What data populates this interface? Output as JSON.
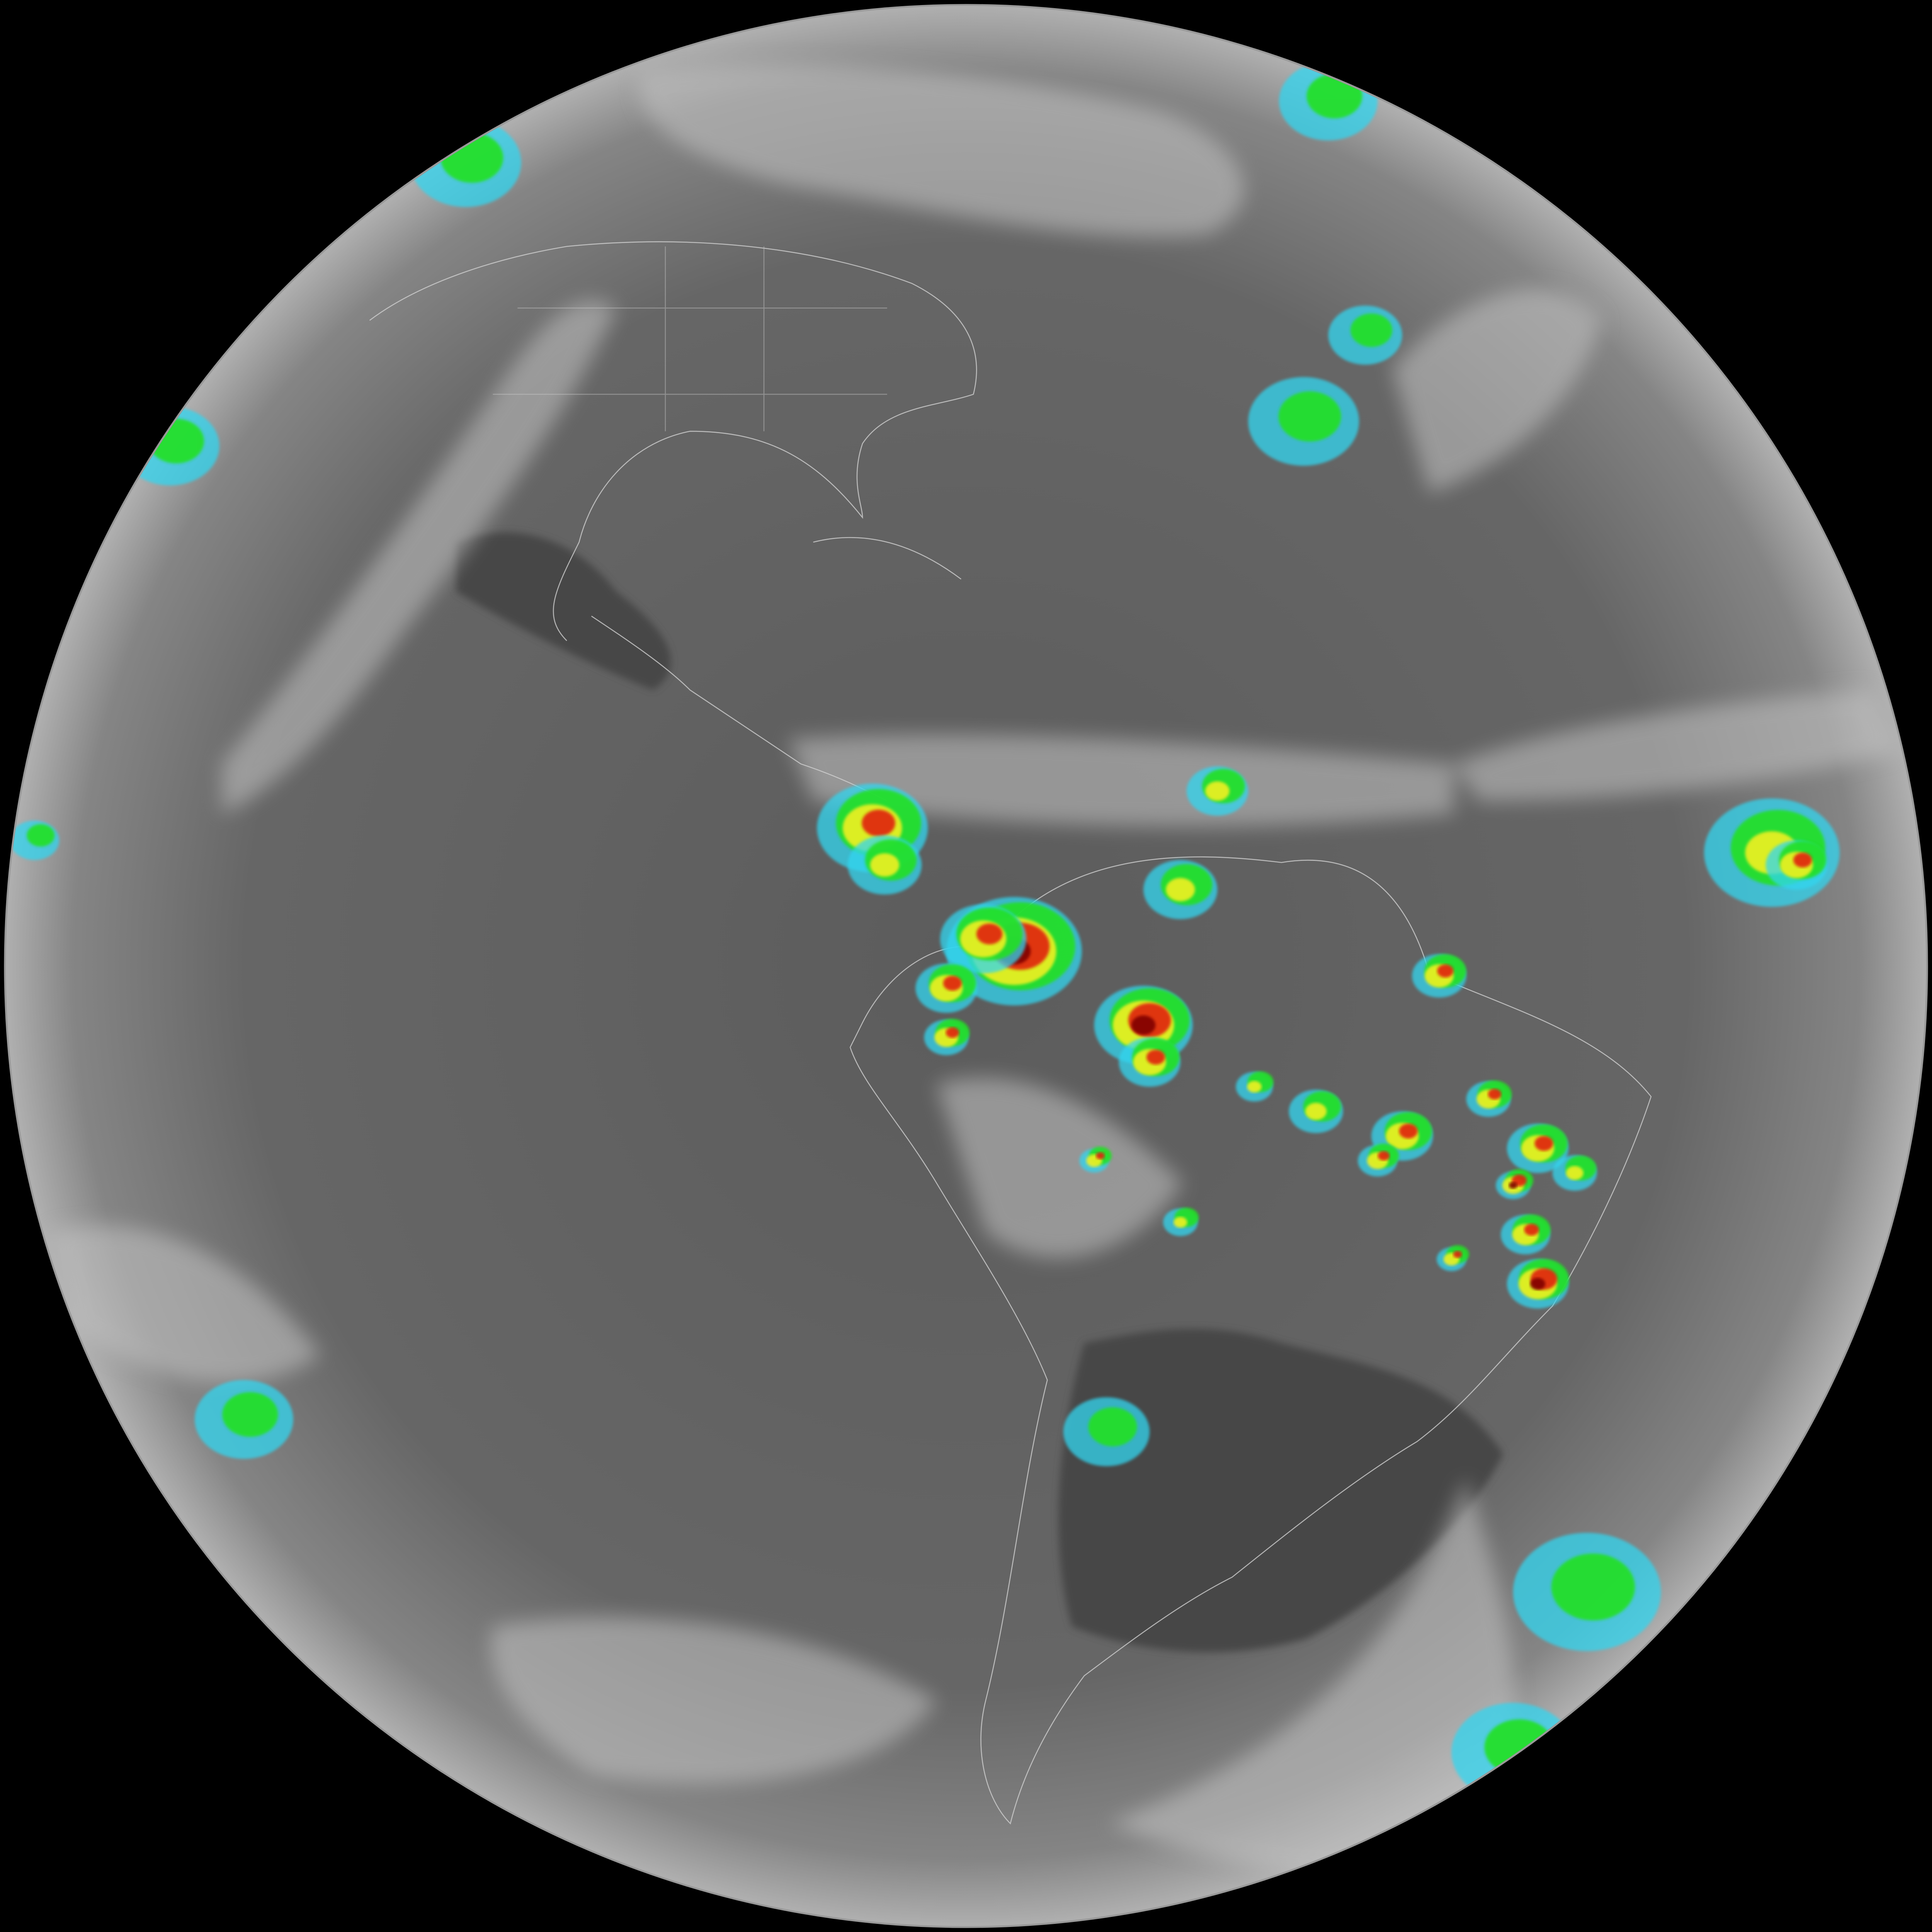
{
  "image": {
    "subject": "full-disk-infrared-satellite-earth",
    "colors": {
      "space": "#000000",
      "disk_base": "#5e5e5e",
      "disk_limb": "#a8a8a8",
      "cloud": "#c8c8c8",
      "land_dark": "#3a3a3a",
      "outline": "#d8d8d8",
      "cold_cyan": "#33d6f0",
      "cold_blue": "#1030a0",
      "cold_green": "#22e022",
      "cold_yellow": "#f0f020",
      "cold_red": "#e02010",
      "cold_darkred": "#800000"
    },
    "features": [
      "north-america-outline",
      "south-america-outline",
      "central-america-outline",
      "convective-storm-cells",
      "cloud-bands"
    ]
  }
}
